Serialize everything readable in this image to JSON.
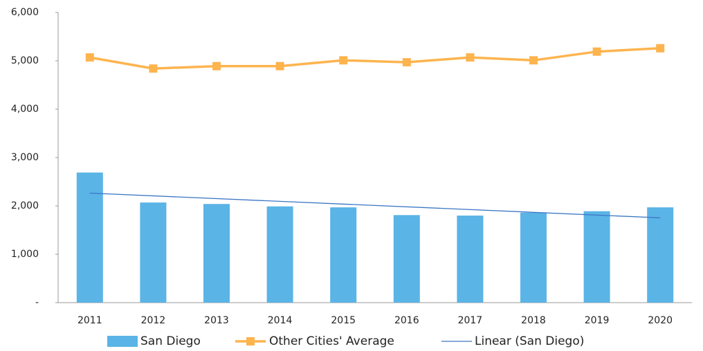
{
  "chart_data": {
    "type": "bar_line",
    "categories": [
      "2011",
      "2012",
      "2013",
      "2014",
      "2015",
      "2016",
      "2017",
      "2018",
      "2019",
      "2020"
    ],
    "series": [
      {
        "name": "San Diego",
        "color": "#5ab4e6",
        "type": "bar",
        "values": [
          2690,
          2070,
          2040,
          1990,
          1970,
          1810,
          1800,
          1860,
          1890,
          1970
        ]
      },
      {
        "name": "Other Cities' Average",
        "color": "#fdb44e",
        "type": "line",
        "values": [
          5070,
          4840,
          4890,
          4890,
          5010,
          4970,
          5070,
          5010,
          5190,
          5260
        ]
      }
    ],
    "trendline": {
      "name": "Linear (San Diego)",
      "color": "#3a76c4"
    },
    "ylim": [
      0,
      6000
    ],
    "yticks": [
      {
        "value": 0,
        "label": "-"
      },
      {
        "value": 1000,
        "label": "1,000"
      },
      {
        "value": 2000,
        "label": "2,000"
      },
      {
        "value": 3000,
        "label": "3,000"
      },
      {
        "value": 4000,
        "label": "4,000"
      },
      {
        "value": 5000,
        "label": "5,000"
      },
      {
        "value": 6000,
        "label": "6,000"
      }
    ],
    "legend": "bottom"
  }
}
